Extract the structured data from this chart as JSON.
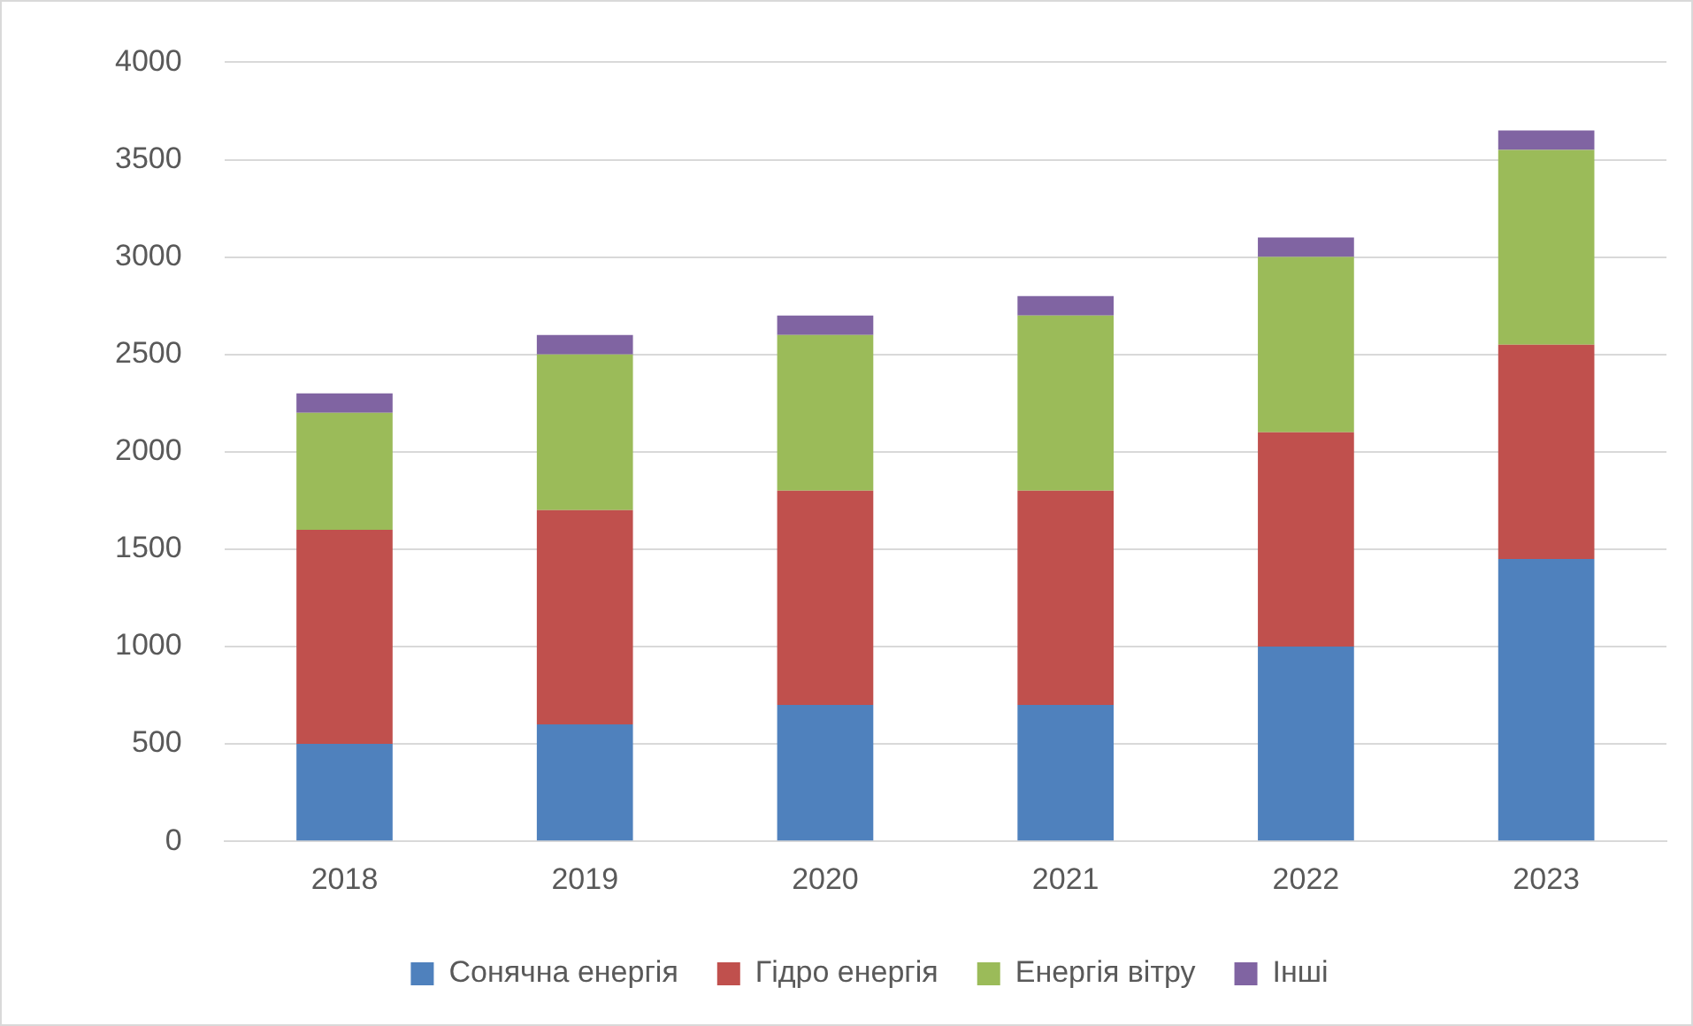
{
  "chart_data": {
    "type": "bar",
    "stacked": true,
    "categories": [
      "2018",
      "2019",
      "2020",
      "2021",
      "2022",
      "2023"
    ],
    "series": [
      {
        "name": "Сонячна енергія",
        "color": "#4f81bd",
        "values": [
          500,
          600,
          700,
          700,
          1000,
          1450
        ]
      },
      {
        "name": "Гідро енергія",
        "color": "#c0504d",
        "values": [
          1100,
          1100,
          1100,
          1100,
          1100,
          1100
        ]
      },
      {
        "name": "Енергія вітру",
        "color": "#9bbb59",
        "values": [
          600,
          800,
          800,
          900,
          900,
          1000
        ]
      },
      {
        "name": "Інші",
        "color": "#8064a2",
        "values": [
          100,
          100,
          100,
          100,
          100,
          100
        ]
      }
    ],
    "ylim": [
      0,
      4000
    ],
    "yticks": [
      0,
      500,
      1000,
      1500,
      2000,
      2500,
      3000,
      3500,
      4000
    ],
    "grid": "y",
    "legend": "bottom"
  }
}
